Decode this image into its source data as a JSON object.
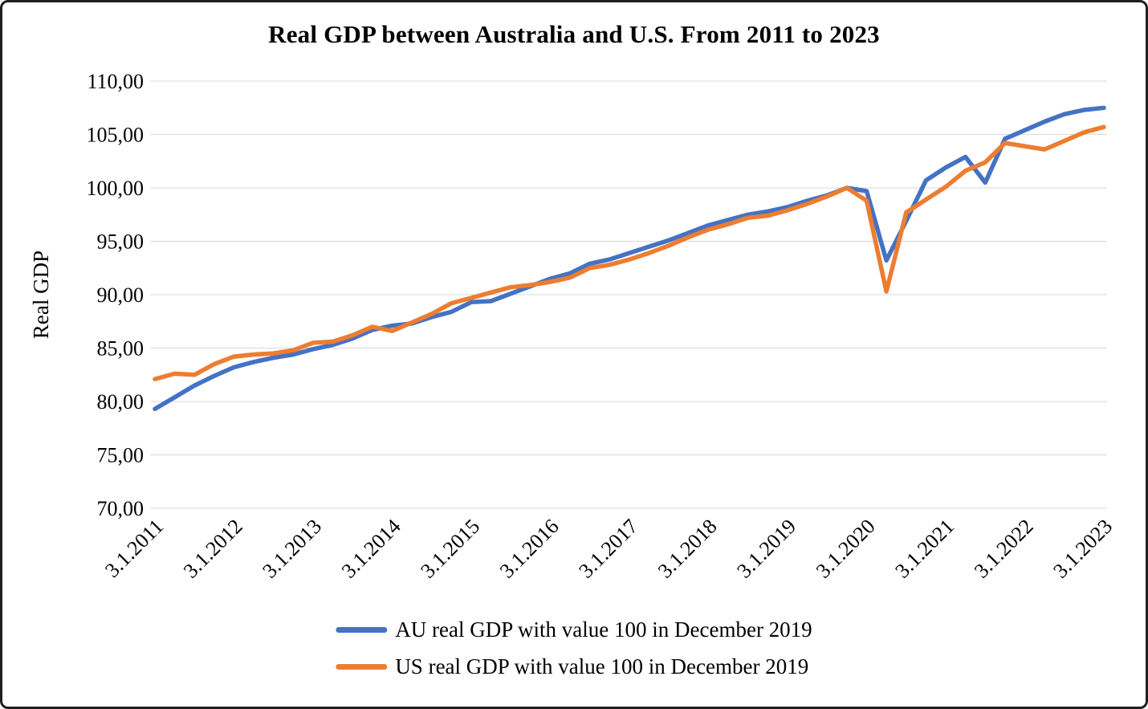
{
  "chart_data": {
    "type": "line",
    "title": "Real GDP between Australia and U.S. From 2011 to 2023",
    "xlabel": "",
    "ylabel": "Real GDP",
    "grid": "horizontal",
    "legend_position": "bottom",
    "y_axis": {
      "min": 70,
      "max": 110,
      "step": 5,
      "tick_labels": [
        "70,00",
        "75,00",
        "80,00",
        "85,00",
        "90,00",
        "95,00",
        "100,00",
        "105,00",
        "110,00"
      ]
    },
    "x_tick_labels": [
      "3.1.2011",
      "3.1.2012",
      "3.1.2013",
      "3.1.2014",
      "3.1.2015",
      "3.1.2016",
      "3.1.2017",
      "3.1.2018",
      "3.1.2019",
      "3.1.2020",
      "3.1.2021",
      "3.1.2022",
      "3.1.2023"
    ],
    "x": [
      "3.1.2011",
      "6.1.2011",
      "9.1.2011",
      "12.1.2011",
      "3.1.2012",
      "6.1.2012",
      "9.1.2012",
      "12.1.2012",
      "3.1.2013",
      "6.1.2013",
      "9.1.2013",
      "12.1.2013",
      "3.1.2014",
      "6.1.2014",
      "9.1.2014",
      "12.1.2014",
      "3.1.2015",
      "6.1.2015",
      "9.1.2015",
      "12.1.2015",
      "3.1.2016",
      "6.1.2016",
      "9.1.2016",
      "12.1.2016",
      "3.1.2017",
      "6.1.2017",
      "9.1.2017",
      "12.1.2017",
      "3.1.2018",
      "6.1.2018",
      "9.1.2018",
      "12.1.2018",
      "3.1.2019",
      "6.1.2019",
      "9.1.2019",
      "12.1.2019",
      "3.1.2020",
      "6.1.2020",
      "9.1.2020",
      "12.1.2020",
      "3.1.2021",
      "6.1.2021",
      "9.1.2021",
      "12.1.2021",
      "3.1.2022",
      "6.1.2022",
      "9.1.2022",
      "12.1.2022",
      "3.1.2023"
    ],
    "series": [
      {
        "name": "AU real GDP with value 100 in December 2019",
        "color": "#4472C4",
        "values": [
          79.3,
          80.4,
          81.5,
          82.4,
          83.2,
          83.7,
          84.1,
          84.4,
          84.9,
          85.3,
          85.9,
          86.7,
          87.1,
          87.3,
          87.9,
          88.4,
          89.3,
          89.4,
          90.1,
          90.8,
          91.5,
          92.0,
          92.9,
          93.3,
          93.9,
          94.5,
          95.1,
          95.8,
          96.5,
          97.0,
          97.5,
          97.8,
          98.2,
          98.8,
          99.3,
          100.0,
          99.7,
          93.2,
          96.9,
          100.7,
          101.9,
          102.9,
          100.5,
          104.6,
          105.4,
          106.2,
          106.9,
          107.3,
          107.5
        ]
      },
      {
        "name": "US real GDP with value 100 in December 2019",
        "color": "#ED7D31",
        "values": [
          82.1,
          82.6,
          82.5,
          83.5,
          84.2,
          84.4,
          84.5,
          84.8,
          85.5,
          85.6,
          86.2,
          87.0,
          86.6,
          87.4,
          88.2,
          89.2,
          89.7,
          90.2,
          90.7,
          90.9,
          91.2,
          91.6,
          92.5,
          92.8,
          93.3,
          93.9,
          94.6,
          95.4,
          96.1,
          96.6,
          97.2,
          97.4,
          97.9,
          98.5,
          99.2,
          100.0,
          98.8,
          90.3,
          97.7,
          98.9,
          100.1,
          101.6,
          102.4,
          104.2,
          103.9,
          103.6,
          104.4,
          105.2,
          105.7
        ]
      }
    ]
  }
}
